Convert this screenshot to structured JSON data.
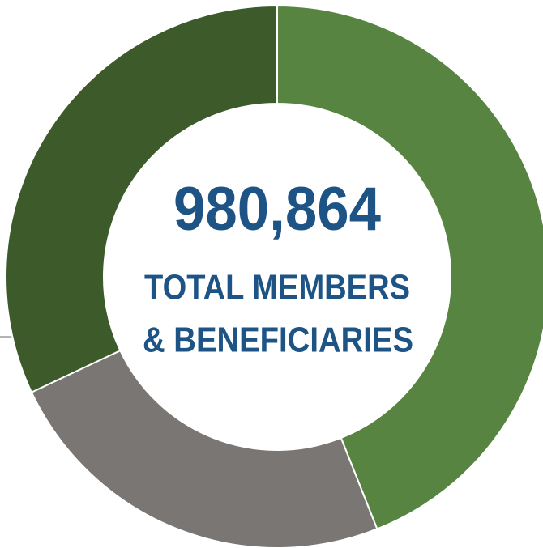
{
  "chart_data": {
    "type": "pie",
    "donut": true,
    "values": [
      44,
      24,
      32
    ],
    "colors": [
      "#578440",
      "#7a7673",
      "#3d5b2a"
    ],
    "center_value": "980,864",
    "center_label": [
      "TOTAL MEMBERS",
      "& BENEFICIARIES"
    ]
  }
}
